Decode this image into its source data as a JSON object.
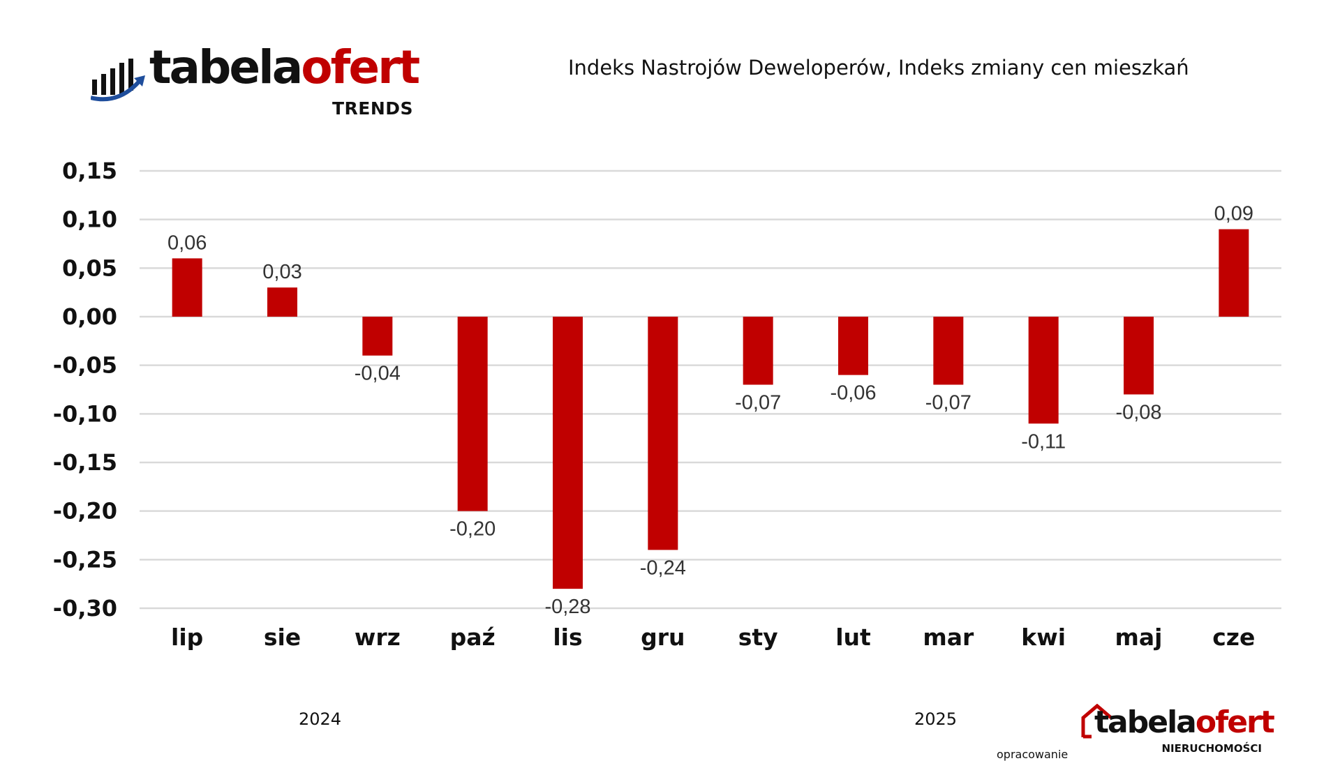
{
  "header": {
    "logo_word_black": "tabela",
    "logo_word_red": "ofert",
    "logo_sub": "TRENDS",
    "title": "Indeks Nastrojów Deweloperów, Indeks zmiany cen mieszkań"
  },
  "colors": {
    "bar": "#c00000",
    "brand_red": "#c00000",
    "brand_blue": "#1f4e9c",
    "grid": "#d9d9d9",
    "text": "#111111"
  },
  "chart_data": {
    "type": "bar",
    "title": "Indeks Nastrojów Deweloperów, Indeks zmiany cen mieszkań",
    "xlabel": "",
    "ylabel": "",
    "categories": [
      "lip",
      "sie",
      "wrz",
      "paź",
      "lis",
      "gru",
      "sty",
      "lut",
      "mar",
      "kwi",
      "maj",
      "cze"
    ],
    "values": [
      0.06,
      0.03,
      -0.04,
      -0.2,
      -0.28,
      -0.24,
      -0.07,
      -0.06,
      -0.07,
      -0.11,
      -0.08,
      0.09
    ],
    "data_labels": [
      "0,06",
      "0,03",
      "-0,04",
      "-0,20",
      "-0,28",
      "-0,24",
      "-0,07",
      "-0,06",
      "-0,07",
      "-0,11",
      "-0,08",
      "0,09"
    ],
    "ylim": [
      -0.3,
      0.15
    ],
    "yticks": [
      0.15,
      0.1,
      0.05,
      0.0,
      -0.05,
      -0.1,
      -0.15,
      -0.2,
      -0.25,
      -0.3
    ],
    "ytick_labels": [
      "0,15",
      "0,10",
      "0,05",
      "0,00",
      "-0,05",
      "-0,10",
      "-0,15",
      "-0,20",
      "-0,25",
      "-0,30"
    ],
    "grid": true,
    "legend": "none"
  },
  "years": {
    "first": "2024",
    "second": "2025"
  },
  "footer": {
    "credit": "opracowanie",
    "logo_word_black": "tabela",
    "logo_word_red": "ofert",
    "logo_sub": "NIERUCHOMOŚCI"
  }
}
